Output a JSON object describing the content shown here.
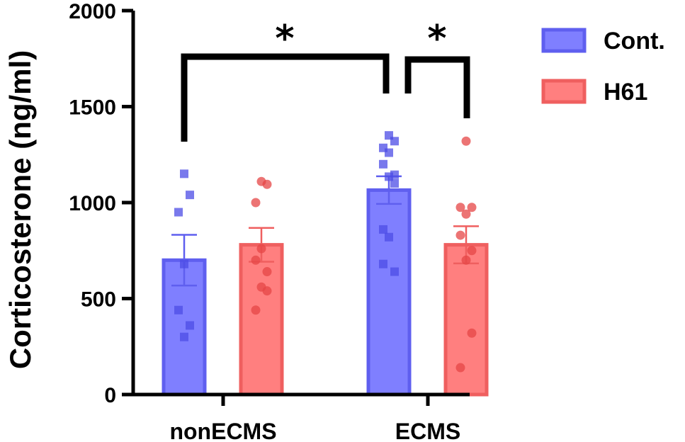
{
  "colors": {
    "cont_fill": "#7f7fff",
    "cont_stroke": "#5f5fef",
    "cont_point": "#4c4ce6",
    "h61_fill": "#ff7f7f",
    "h61_stroke": "#ef5f5f",
    "h61_point": "#e64545"
  },
  "chart_data": {
    "type": "bar",
    "ylabel": "Corticosterone (ng/ml)",
    "ylim": [
      0,
      2000
    ],
    "yticks": [
      "0",
      "500",
      "1000",
      "1500",
      "2000"
    ],
    "categories": [
      "nonECMS",
      "ECMS"
    ],
    "series": [
      {
        "name": "Cont.",
        "marker": "square",
        "values": [
          700,
          1065
        ],
        "sem": [
          132,
          72
        ],
        "points": [
          [
            1150,
            1040,
            950,
            680,
            440,
            360,
            300
          ],
          [
            1350,
            1320,
            1285,
            1260,
            1200,
            1145,
            1135,
            1100,
            860,
            820,
            680,
            640
          ]
        ]
      },
      {
        "name": "H61",
        "marker": "circle",
        "values": [
          780,
          780
        ],
        "sem": [
          88,
          97
        ],
        "points": [
          [
            1110,
            1095,
            1000,
            760,
            700,
            640,
            560,
            540,
            440
          ],
          [
            1320,
            975,
            975,
            940,
            830,
            750,
            700,
            320,
            140
          ]
        ]
      }
    ],
    "significance": [
      {
        "label": "*",
        "from": "nonECMS Cont.",
        "to": "ECMS Cont."
      },
      {
        "label": "*",
        "from": "ECMS Cont.",
        "to": "ECMS H61"
      }
    ]
  }
}
